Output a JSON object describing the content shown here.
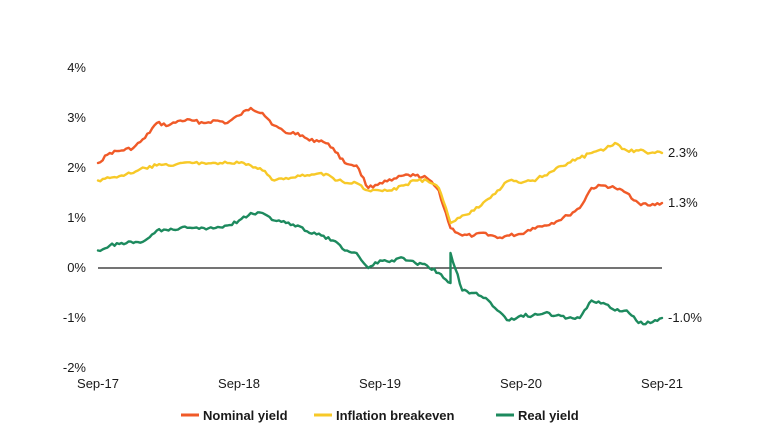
{
  "chart_data": {
    "type": "line",
    "title": "",
    "xlabel": "",
    "ylabel": "",
    "ylim": [
      -2,
      4
    ],
    "y_ticks": [
      "4%",
      "3%",
      "2%",
      "1%",
      "0%",
      "-1%",
      "-2%"
    ],
    "y_tick_values": [
      4,
      3,
      2,
      1,
      0,
      -1,
      -2
    ],
    "x_ticks": [
      "Sep-17",
      "Sep-18",
      "Sep-19",
      "Sep-20",
      "Sep-21"
    ],
    "x_tick_values": [
      "2017-09",
      "2018-09",
      "2019-09",
      "2020-09",
      "2021-09"
    ],
    "zero_line": true,
    "grid": false,
    "legend_position": "bottom",
    "series": [
      {
        "name": "Nominal yield",
        "color": "#f05a28",
        "end_label": "1.3%",
        "points": [
          [
            "2017-09",
            2.1
          ],
          [
            "2017-10",
            2.3
          ],
          [
            "2017-11",
            2.35
          ],
          [
            "2017-12",
            2.4
          ],
          [
            "2018-01",
            2.6
          ],
          [
            "2018-02",
            2.9
          ],
          [
            "2018-03",
            2.85
          ],
          [
            "2018-04",
            2.95
          ],
          [
            "2018-05",
            2.95
          ],
          [
            "2018-06",
            2.9
          ],
          [
            "2018-07",
            2.95
          ],
          [
            "2018-08",
            2.9
          ],
          [
            "2018-09",
            3.05
          ],
          [
            "2018-10",
            3.2
          ],
          [
            "2018-11",
            3.1
          ],
          [
            "2018-12",
            2.85
          ],
          [
            "2019-01",
            2.7
          ],
          [
            "2019-02",
            2.7
          ],
          [
            "2019-03",
            2.55
          ],
          [
            "2019-04",
            2.55
          ],
          [
            "2019-05",
            2.4
          ],
          [
            "2019-06",
            2.1
          ],
          [
            "2019-07",
            2.05
          ],
          [
            "2019-08",
            1.6
          ],
          [
            "2019-09",
            1.7
          ],
          [
            "2019-10",
            1.75
          ],
          [
            "2019-11",
            1.85
          ],
          [
            "2019-12",
            1.85
          ],
          [
            "2020-01",
            1.8
          ],
          [
            "2020-02",
            1.55
          ],
          [
            "2020-03",
            0.8
          ],
          [
            "2020-04",
            0.65
          ],
          [
            "2020-05",
            0.65
          ],
          [
            "2020-06",
            0.7
          ],
          [
            "2020-07",
            0.6
          ],
          [
            "2020-08",
            0.65
          ],
          [
            "2020-09",
            0.68
          ],
          [
            "2020-10",
            0.8
          ],
          [
            "2020-11",
            0.85
          ],
          [
            "2020-12",
            0.93
          ],
          [
            "2021-01",
            1.05
          ],
          [
            "2021-02",
            1.2
          ],
          [
            "2021-03",
            1.6
          ],
          [
            "2021-04",
            1.65
          ],
          [
            "2021-05",
            1.6
          ],
          [
            "2021-06",
            1.5
          ],
          [
            "2021-07",
            1.3
          ],
          [
            "2021-08",
            1.25
          ],
          [
            "2021-09",
            1.3
          ]
        ]
      },
      {
        "name": "Inflation breakeven",
        "color": "#f7c928",
        "end_label": "2.3%",
        "points": [
          [
            "2017-09",
            1.75
          ],
          [
            "2017-10",
            1.8
          ],
          [
            "2017-11",
            1.85
          ],
          [
            "2017-12",
            1.9
          ],
          [
            "2018-01",
            2.0
          ],
          [
            "2018-02",
            2.05
          ],
          [
            "2018-03",
            2.05
          ],
          [
            "2018-04",
            2.1
          ],
          [
            "2018-05",
            2.1
          ],
          [
            "2018-06",
            2.1
          ],
          [
            "2018-07",
            2.1
          ],
          [
            "2018-08",
            2.1
          ],
          [
            "2018-09",
            2.1
          ],
          [
            "2018-10",
            2.05
          ],
          [
            "2018-11",
            1.95
          ],
          [
            "2018-12",
            1.75
          ],
          [
            "2019-01",
            1.8
          ],
          [
            "2019-02",
            1.85
          ],
          [
            "2019-03",
            1.85
          ],
          [
            "2019-04",
            1.9
          ],
          [
            "2019-05",
            1.8
          ],
          [
            "2019-06",
            1.7
          ],
          [
            "2019-07",
            1.7
          ],
          [
            "2019-08",
            1.55
          ],
          [
            "2019-09",
            1.55
          ],
          [
            "2019-10",
            1.55
          ],
          [
            "2019-11",
            1.65
          ],
          [
            "2019-12",
            1.75
          ],
          [
            "2020-01",
            1.75
          ],
          [
            "2020-02",
            1.6
          ],
          [
            "2020-03",
            0.9
          ],
          [
            "2020-04",
            1.05
          ],
          [
            "2020-05",
            1.15
          ],
          [
            "2020-06",
            1.35
          ],
          [
            "2020-07",
            1.55
          ],
          [
            "2020-08",
            1.75
          ],
          [
            "2020-09",
            1.7
          ],
          [
            "2020-10",
            1.75
          ],
          [
            "2020-11",
            1.85
          ],
          [
            "2020-12",
            2.0
          ],
          [
            "2021-01",
            2.1
          ],
          [
            "2021-02",
            2.2
          ],
          [
            "2021-03",
            2.3
          ],
          [
            "2021-04",
            2.35
          ],
          [
            "2021-05",
            2.5
          ],
          [
            "2021-06",
            2.35
          ],
          [
            "2021-07",
            2.35
          ],
          [
            "2021-08",
            2.3
          ],
          [
            "2021-09",
            2.3
          ]
        ]
      },
      {
        "name": "Real yield",
        "color": "#1d8a5e",
        "end_label": "-1.0%",
        "points": [
          [
            "2017-09",
            0.35
          ],
          [
            "2017-10",
            0.45
          ],
          [
            "2017-11",
            0.5
          ],
          [
            "2017-12",
            0.5
          ],
          [
            "2018-01",
            0.55
          ],
          [
            "2018-02",
            0.75
          ],
          [
            "2018-03",
            0.75
          ],
          [
            "2018-04",
            0.8
          ],
          [
            "2018-05",
            0.8
          ],
          [
            "2018-06",
            0.8
          ],
          [
            "2018-07",
            0.8
          ],
          [
            "2018-08",
            0.85
          ],
          [
            "2018-09",
            0.95
          ],
          [
            "2018-10",
            1.1
          ],
          [
            "2018-11",
            1.1
          ],
          [
            "2018-12",
            0.95
          ],
          [
            "2019-01",
            0.9
          ],
          [
            "2019-02",
            0.85
          ],
          [
            "2019-03",
            0.7
          ],
          [
            "2019-04",
            0.65
          ],
          [
            "2019-05",
            0.55
          ],
          [
            "2019-06",
            0.35
          ],
          [
            "2019-07",
            0.3
          ],
          [
            "2019-08",
            0.0
          ],
          [
            "2019-09",
            0.15
          ],
          [
            "2019-10",
            0.15
          ],
          [
            "2019-11",
            0.2
          ],
          [
            "2019-12",
            0.1
          ],
          [
            "2020-01",
            0.05
          ],
          [
            "2020-02",
            -0.1
          ],
          [
            "2020-03",
            -0.3
          ],
          [
            "2020-03",
            0.3
          ],
          [
            "2020-04",
            -0.45
          ],
          [
            "2020-05",
            -0.5
          ],
          [
            "2020-06",
            -0.6
          ],
          [
            "2020-07",
            -0.85
          ],
          [
            "2020-08",
            -1.05
          ],
          [
            "2020-09",
            -0.95
          ],
          [
            "2020-10",
            -0.95
          ],
          [
            "2020-11",
            -0.9
          ],
          [
            "2020-12",
            -0.95
          ],
          [
            "2021-01",
            -1.0
          ],
          [
            "2021-02",
            -1.0
          ],
          [
            "2021-03",
            -0.65
          ],
          [
            "2021-04",
            -0.7
          ],
          [
            "2021-05",
            -0.85
          ],
          [
            "2021-06",
            -0.85
          ],
          [
            "2021-07",
            -1.1
          ],
          [
            "2021-08",
            -1.1
          ],
          [
            "2021-09",
            -1.0
          ]
        ]
      }
    ]
  }
}
